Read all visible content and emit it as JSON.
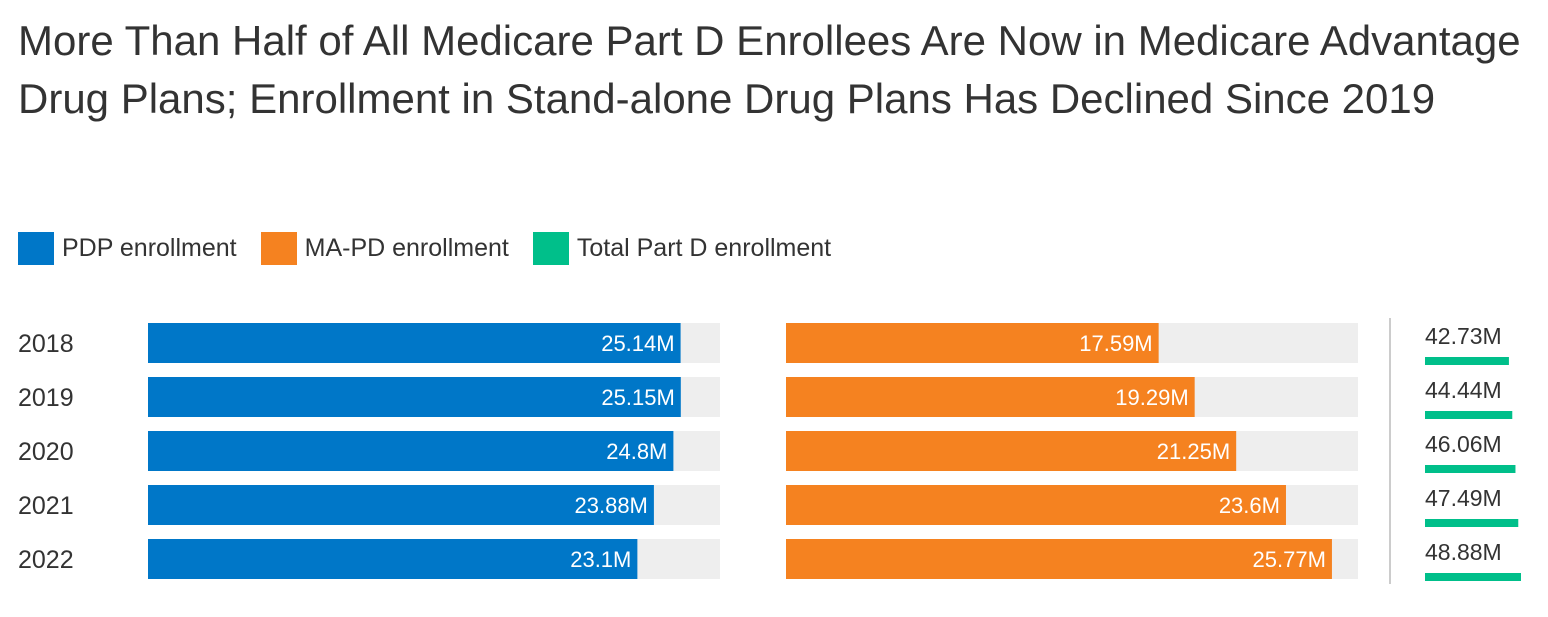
{
  "title": "More Than Half of All Medicare Part D Enrollees Are Now in Medicare Advantage Drug Plans; Enrollment in Stand-alone Drug Plans Has Declined Since 2019",
  "colors": {
    "pdp": "#0077c8",
    "mapd": "#f58220",
    "total": "#00bf8a",
    "track": "#eeeeee",
    "text": "#333333",
    "divider": "#cccccc"
  },
  "legend": [
    {
      "label": "PDP enrollment",
      "color": "#0077c8"
    },
    {
      "label": "MA-PD enrollment",
      "color": "#f58220"
    },
    {
      "label": "Total Part D enrollment",
      "color": "#00bf8a"
    }
  ],
  "chart_data": {
    "type": "bar",
    "orientation": "horizontal",
    "title": "More Than Half of All Medicare Part D Enrollees Are Now in Medicare Advantage Drug Plans; Enrollment in Stand-alone Drug Plans Has Declined Since 2019",
    "categories": [
      "2018",
      "2019",
      "2020",
      "2021",
      "2022"
    ],
    "series": [
      {
        "name": "PDP enrollment",
        "values": [
          25.14,
          25.15,
          24.8,
          23.88,
          23.1
        ],
        "labels": [
          "25.14M",
          "25.15M",
          "24.8M",
          "23.88M",
          "23.1M"
        ]
      },
      {
        "name": "MA-PD enrollment",
        "values": [
          17.59,
          19.29,
          21.25,
          23.6,
          25.77
        ],
        "labels": [
          "17.59M",
          "19.29M",
          "21.25M",
          "23.6M",
          "25.77M"
        ]
      },
      {
        "name": "Total Part D enrollment",
        "values": [
          42.73,
          44.44,
          46.06,
          47.49,
          48.88
        ],
        "labels": [
          "42.73M",
          "44.44M",
          "46.06M",
          "47.49M",
          "48.88M"
        ]
      }
    ],
    "panel_max": 27,
    "total_max": 48.88,
    "legend_position": "top-left",
    "grid": false
  }
}
